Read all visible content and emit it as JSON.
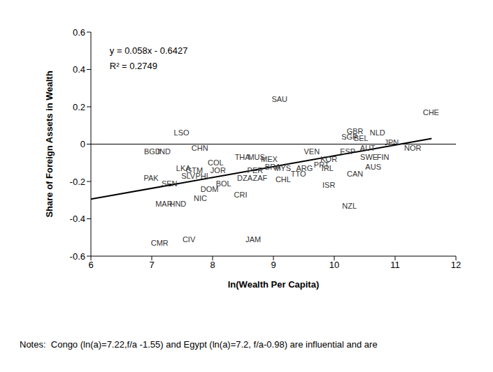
{
  "chart_data": {
    "type": "scatter",
    "x_label": "ln(Wealth Per Capita)",
    "y_label": "Share of Foreign Assets in Wealth",
    "xlim": [
      6,
      12
    ],
    "ylim": [
      -0.6,
      0.6
    ],
    "xticks": [
      6,
      7,
      8,
      9,
      10,
      11,
      12
    ],
    "yticks": [
      -0.6,
      -0.4,
      -0.2,
      0,
      0.2,
      0.4,
      0.6
    ],
    "marker": "label",
    "color": "#333333",
    "points": [
      {
        "label": "SAU",
        "x": 9.1,
        "y": 0.24
      },
      {
        "label": "CHE",
        "x": 11.59,
        "y": 0.17
      },
      {
        "label": "LSO",
        "x": 7.49,
        "y": 0.06
      },
      {
        "label": "BGD",
        "x": 7.01,
        "y": -0.04
      },
      {
        "label": "IND",
        "x": 7.2,
        "y": -0.04
      },
      {
        "label": "CHN",
        "x": 7.79,
        "y": -0.02
      },
      {
        "label": "GBR",
        "x": 10.34,
        "y": 0.07
      },
      {
        "label": "SGP",
        "x": 10.25,
        "y": 0.04
      },
      {
        "label": "NLD",
        "x": 10.71,
        "y": 0.06
      },
      {
        "label": "BEL",
        "x": 10.44,
        "y": 0.03
      },
      {
        "label": "JPN",
        "x": 10.94,
        "y": 0.01
      },
      {
        "label": "AUT",
        "x": 10.55,
        "y": -0.02
      },
      {
        "label": "NOR",
        "x": 11.29,
        "y": -0.02
      },
      {
        "label": "FIN",
        "x": 10.8,
        "y": -0.07
      },
      {
        "label": "SWE",
        "x": 10.57,
        "y": -0.07
      },
      {
        "label": "AUS",
        "x": 10.64,
        "y": -0.12
      },
      {
        "label": "CAN",
        "x": 10.34,
        "y": -0.16
      },
      {
        "label": "ESP",
        "x": 10.22,
        "y": -0.04
      },
      {
        "label": "ISR",
        "x": 9.91,
        "y": -0.22
      },
      {
        "label": "NZL",
        "x": 10.25,
        "y": -0.33
      },
      {
        "label": "VEN",
        "x": 9.63,
        "y": -0.04
      },
      {
        "label": "THA",
        "x": 8.49,
        "y": -0.07
      },
      {
        "label": "MUS",
        "x": 8.72,
        "y": -0.07
      },
      {
        "label": "COL",
        "x": 8.05,
        "y": -0.1
      },
      {
        "label": "MEX",
        "x": 8.93,
        "y": -0.08
      },
      {
        "label": "KOR",
        "x": 9.91,
        "y": -0.08
      },
      {
        "label": "PRT",
        "x": 9.79,
        "y": -0.11
      },
      {
        "label": "IRL",
        "x": 9.89,
        "y": -0.13
      },
      {
        "label": "ARG",
        "x": 9.51,
        "y": -0.13
      },
      {
        "label": "TTO",
        "x": 9.41,
        "y": -0.16
      },
      {
        "label": "BRA",
        "x": 8.99,
        "y": -0.12
      },
      {
        "label": "MYS",
        "x": 9.15,
        "y": -0.13
      },
      {
        "label": "CHL",
        "x": 9.16,
        "y": -0.19
      },
      {
        "label": "PER",
        "x": 8.7,
        "y": -0.14
      },
      {
        "label": "ZAF",
        "x": 8.78,
        "y": -0.18
      },
      {
        "label": "DZA",
        "x": 8.53,
        "y": -0.18
      },
      {
        "label": "JOR",
        "x": 8.09,
        "y": -0.14
      },
      {
        "label": "PHL",
        "x": 7.84,
        "y": -0.17
      },
      {
        "label": "SLV",
        "x": 7.6,
        "y": -0.17
      },
      {
        "label": "LKA",
        "x": 7.52,
        "y": -0.13
      },
      {
        "label": "GTM",
        "x": 7.7,
        "y": -0.14
      },
      {
        "label": "PAK",
        "x": 6.99,
        "y": -0.18
      },
      {
        "label": "SEN",
        "x": 7.29,
        "y": -0.21
      },
      {
        "label": "BOL",
        "x": 8.18,
        "y": -0.21
      },
      {
        "label": "DOM",
        "x": 7.95,
        "y": -0.24
      },
      {
        "label": "CRI",
        "x": 8.46,
        "y": -0.27
      },
      {
        "label": "NIC",
        "x": 7.8,
        "y": -0.29
      },
      {
        "label": "MAR",
        "x": 7.2,
        "y": -0.32
      },
      {
        "label": "HND",
        "x": 7.43,
        "y": -0.32
      },
      {
        "label": "CMR",
        "x": 7.13,
        "y": -0.53
      },
      {
        "label": "CIV",
        "x": 7.61,
        "y": -0.51
      },
      {
        "label": "JAM",
        "x": 8.67,
        "y": -0.51
      }
    ],
    "trend_line": {
      "x": [
        6,
        11.6
      ],
      "y": [
        -0.2947,
        0.0301
      ],
      "color": "#000000"
    },
    "annotations": [
      "y = 0.058x - 0.6427",
      "R² = 0.2749"
    ],
    "note": "Notes:  Congo (ln(a)=7.22,f/a -1.55) and Egypt (ln(a)=7.2, f/a-0.98) are influential and are"
  }
}
